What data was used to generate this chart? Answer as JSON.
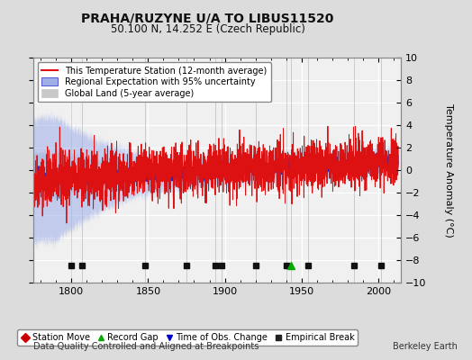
{
  "title": "PRAHA/RUZYNE U/A TO LIBUS11520",
  "subtitle": "50.100 N, 14.252 E (Czech Republic)",
  "ylabel": "Temperature Anomaly (°C)",
  "ylim": [
    -10,
    10
  ],
  "xlim": [
    1775,
    2015
  ],
  "yticks": [
    -10,
    -8,
    -6,
    -4,
    -2,
    0,
    2,
    4,
    6,
    8,
    10
  ],
  "xticks": [
    1800,
    1850,
    1900,
    1950,
    2000
  ],
  "bg_color": "#dcdcdc",
  "plot_bg_color": "#f0f0f0",
  "grid_color": "#ffffff",
  "legend_entries": [
    "This Temperature Station (12-month average)",
    "Regional Expectation with 95% uncertainty",
    "Global Land (5-year average)"
  ],
  "marker_legend": [
    {
      "label": "Station Move",
      "color": "#cc0000",
      "marker": "D"
    },
    {
      "label": "Record Gap",
      "color": "#00aa00",
      "marker": "^"
    },
    {
      "label": "Time of Obs. Change",
      "color": "#0000cc",
      "marker": "v"
    },
    {
      "label": "Empirical Break",
      "color": "#222222",
      "marker": "s"
    }
  ],
  "empirical_breaks": [
    1800,
    1807,
    1848,
    1875,
    1894,
    1898,
    1920,
    1940,
    1954,
    1984,
    2002
  ],
  "record_gap": [
    1943
  ],
  "station_move": [],
  "time_obs_change": [],
  "footer_left": "Data Quality Controlled and Aligned at Breakpoints",
  "footer_right": "Berkeley Earth",
  "seed": 42
}
